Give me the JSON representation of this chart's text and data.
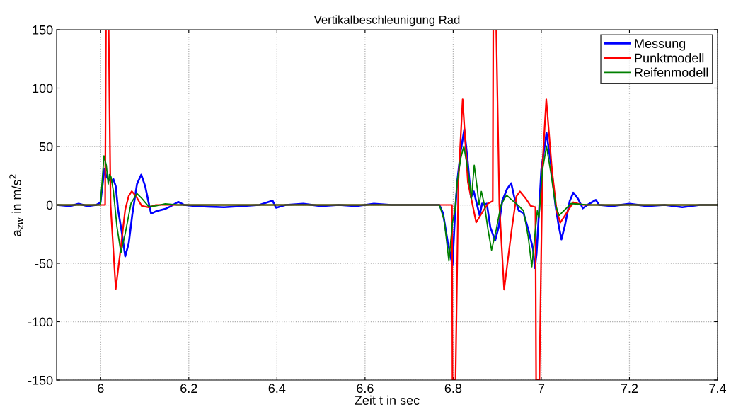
{
  "chart_data": {
    "type": "line",
    "title": "Vertikalbeschleunigung Rad",
    "xlabel": "Zeit t in sec",
    "ylabel": "a$_{zw}$ in m/s$^{2}$",
    "xlim": [
      5.9,
      7.4
    ],
    "xticks": [
      6,
      6.2,
      6.4,
      6.6,
      6.8,
      7,
      7.2,
      7.4
    ],
    "ylim": [
      -150,
      150
    ],
    "yticks": [
      -150,
      -100,
      -50,
      0,
      50,
      100,
      150
    ],
    "grid": true,
    "legend": "top right",
    "marker": "none",
    "line_style": "solid",
    "series": [
      {
        "name": "Messung",
        "color": "#0000ff",
        "x": [
          5.9,
          5.93,
          5.95,
          5.97,
          5.99,
          5.9995,
          6.0086,
          6.0128,
          6.0182,
          6.0235,
          6.0289,
          6.0342,
          6.0396,
          6.0476,
          6.0557,
          6.0637,
          6.0717,
          6.0824,
          6.0921,
          6.1012,
          6.1091,
          6.1145,
          6.1252,
          6.1466,
          6.1573,
          6.1761,
          6.1894,
          6.2162,
          6.2429,
          6.28,
          6.32,
          6.36,
          6.39,
          6.398,
          6.42,
          6.46,
          6.5,
          6.54,
          6.58,
          6.62,
          6.66,
          6.7,
          6.74,
          6.7688,
          6.7769,
          6.7876,
          6.7984,
          6.8038,
          6.8091,
          6.8172,
          6.8253,
          6.8333,
          6.8403,
          6.8468,
          6.8548,
          6.8602,
          6.8656,
          6.871,
          6.8763,
          6.8844,
          6.8952,
          6.9032,
          6.9113,
          6.922,
          6.9317,
          6.9382,
          6.9489,
          6.9597,
          6.9704,
          6.9812,
          6.9855,
          6.9892,
          6.9946,
          7.0,
          7.0118,
          7.0215,
          7.0323,
          7.0392,
          7.0457,
          7.0538,
          7.0645,
          7.0726,
          7.0833,
          7.0941,
          7.1048,
          7.1237,
          7.1312,
          7.16,
          7.2,
          7.24,
          7.28,
          7.32,
          7.36,
          7.4
        ],
        "values": [
          0,
          -1,
          1,
          -1,
          0,
          2,
          31,
          24,
          22,
          20,
          22,
          16,
          -4.4,
          -22.6,
          -44,
          -33,
          -8.5,
          17.8,
          25.9,
          15.8,
          1.6,
          -7.5,
          -5.5,
          -3.4,
          -1.4,
          2.6,
          0,
          -1,
          -1.4,
          -2,
          -1,
          0,
          3.7,
          -2.4,
          0,
          1,
          -1,
          0,
          -1,
          1,
          0,
          0,
          0,
          0,
          -7,
          -31.6,
          -52,
          -11,
          19.7,
          46.3,
          64.8,
          36,
          6.4,
          11.5,
          -0.8,
          -9,
          1.2,
          0,
          1.2,
          -19.3,
          -30.5,
          -19,
          3.3,
          13.5,
          18.6,
          7.4,
          -4.9,
          -7,
          -21,
          -37.7,
          -54,
          -41.8,
          -7,
          30,
          61.7,
          36,
          -0.8,
          -17.2,
          -29.5,
          -17.2,
          3.3,
          10.5,
          5.3,
          -2.9,
          0,
          4.3,
          0,
          -1,
          1,
          -1,
          0,
          -2,
          0,
          0
        ]
      },
      {
        "name": "Punktmodell",
        "color": "#ff0000",
        "x": [
          5.9,
          6.0101,
          6.012,
          6.0182,
          6.0225,
          6.0342,
          6.0449,
          6.0557,
          6.0637,
          6.0706,
          6.0797,
          6.0931,
          6.1091,
          6.1252,
          6.7,
          6.7973,
          6.7984,
          6.8054,
          6.8118,
          6.8215,
          6.8333,
          6.8522,
          6.8683,
          6.879,
          6.8898,
          6.8909,
          6.8978,
          6.9048,
          6.9156,
          6.9328,
          6.9435,
          6.9516,
          6.9651,
          6.9758,
          6.9866,
          6.9882,
          6.9957,
          7.0027,
          7.0113,
          7.0242,
          7.0349,
          7.043,
          7.0538,
          7.0726,
          7.0941,
          7.4
        ],
        "values": [
          0,
          0,
          150,
          150,
          0,
          -72,
          -39,
          -4,
          7.7,
          11.7,
          7.7,
          -0.8,
          -2,
          0,
          0,
          0,
          -150,
          -150,
          20,
          90.4,
          19.7,
          -15,
          -5,
          1.2,
          3.3,
          150,
          150,
          0,
          -72.5,
          -21,
          7.4,
          11.5,
          5.3,
          -0.8,
          -1.8,
          -150,
          -150,
          35,
          90.4,
          30,
          -5,
          -15.2,
          -9,
          2.3,
          0,
          0
        ]
      },
      {
        "name": "Reifenmodell",
        "color": "#008000",
        "x": [
          5.9,
          5.9995,
          6.0075,
          6.0128,
          6.0171,
          6.0198,
          6.0235,
          6.0289,
          6.0369,
          6.046,
          6.0557,
          6.069,
          6.0824,
          6.0931,
          6.1091,
          6.1252,
          6.1466,
          6.1734,
          6.7688,
          6.7796,
          6.7903,
          6.7984,
          6.8038,
          6.8091,
          6.8172,
          6.8242,
          6.8333,
          6.8414,
          6.8478,
          6.8548,
          6.8586,
          6.864,
          6.871,
          6.879,
          6.8871,
          6.8978,
          6.9086,
          6.921,
          6.9328,
          6.9489,
          6.9597,
          6.9704,
          6.9785,
          6.9839,
          6.9909,
          6.9946,
          7.0027,
          7.0118,
          7.0215,
          7.0323,
          7.0403,
          7.0511,
          7.0672,
          7.1048,
          7.4
        ],
        "values": [
          0,
          0,
          42,
          34,
          17.8,
          26,
          24,
          11.7,
          -18.6,
          -40.8,
          -24.6,
          1.6,
          9.7,
          5.7,
          -1.4,
          -0.8,
          1,
          0,
          0,
          -13,
          -48,
          -15,
          -5,
          19.7,
          40,
          50.4,
          30,
          5.3,
          34,
          13.5,
          0,
          11.5,
          0,
          -21,
          -38.7,
          -21,
          0,
          8.4,
          4.3,
          -0.8,
          -5,
          -27.5,
          -53,
          -31.6,
          -5,
          -11,
          30,
          50.4,
          27.9,
          0,
          -9,
          -5,
          1.2,
          0,
          0
        ]
      }
    ]
  }
}
